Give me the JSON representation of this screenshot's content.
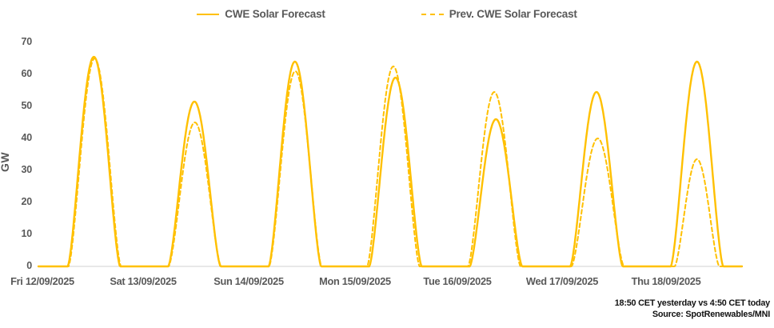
{
  "legend": {
    "series1_label": "CWE Solar Forecast",
    "series2_label": "Prev. CWE Solar Forecast"
  },
  "y_axis": {
    "title": "GW",
    "ticks": [
      70,
      60,
      50,
      40,
      30,
      20,
      10,
      0
    ]
  },
  "x_axis": {
    "labels": [
      "Fri 12/09/2025",
      "Sat 13/09/2025",
      "Sun 14/09/2025",
      "Mon 15/09/2025",
      "Tue 16/09/2025",
      "Wed 17/09/2025",
      "Thu 18/09/2025"
    ]
  },
  "footer": {
    "line1": "18:50 CET yesterday vs  4:50 CET today",
    "line2": "Source: SpotRenewables/MNI"
  },
  "colors": {
    "line_yellow": "#FFC000",
    "axis_text_gray": "#595959",
    "baseline_gray": "#D9D9D9",
    "footer_black": "#111111"
  },
  "chart_data": {
    "type": "line",
    "title": "",
    "xlabel": "",
    "ylabel": "GW",
    "ylim": [
      0,
      70
    ],
    "grid": "none",
    "legend_position": "top-center",
    "categories": [
      "Fri 12/09/2025",
      "Sat 13/09/2025",
      "Sun 14/09/2025",
      "Mon 15/09/2025",
      "Tue 16/09/2025",
      "Wed 17/09/2025",
      "Thu 18/09/2025"
    ],
    "series": [
      {
        "name": "CWE Solar Forecast",
        "line_style": "solid",
        "daily_peak_gw": [
          65.5,
          51.5,
          64,
          59,
          46,
          54.5,
          64
        ]
      },
      {
        "name": "Prev. CWE Solar Forecast",
        "line_style": "dashed",
        "daily_peak_gw": [
          65,
          45,
          61,
          62.5,
          54.5,
          40,
          33.5
        ],
        "peak_time_shift_h": [
          0.2,
          0.1,
          0.1,
          -0.5,
          -0.4,
          0.3,
          0
        ],
        "daylight_width_scale": [
          1,
          1,
          1,
          1,
          1,
          1,
          0.85
        ]
      }
    ],
    "diurnal_shape": {
      "sunrise_h": 7.0,
      "sunset_h": 19.5,
      "peak_h": 13.25,
      "exponent": 1.5,
      "hours_per_day": 24,
      "days": 7
    }
  }
}
